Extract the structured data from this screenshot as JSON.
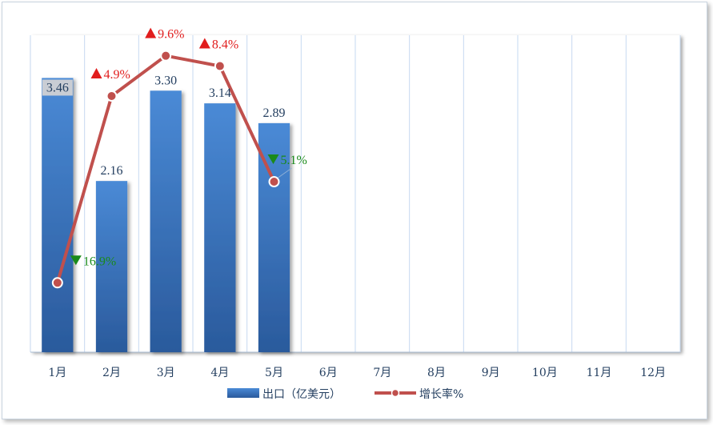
{
  "chart_data": {
    "type": "bar",
    "categories": [
      "1月",
      "2月",
      "3月",
      "4月",
      "5月",
      "6月",
      "7月",
      "8月",
      "9月",
      "10月",
      "11月",
      "12月"
    ],
    "series": [
      {
        "name": "出口（亿美元）",
        "type": "bar",
        "values": [
          3.46,
          2.16,
          3.3,
          3.14,
          2.89,
          null,
          null,
          null,
          null,
          null,
          null,
          null
        ],
        "labels": [
          "3.46",
          "2.16",
          "3.30",
          "3.14",
          "2.89"
        ]
      },
      {
        "name": "增长率%",
        "type": "line",
        "values": [
          -16.9,
          4.9,
          9.6,
          8.4,
          -5.1,
          null,
          null,
          null,
          null,
          null,
          null,
          null
        ],
        "labels": [
          "16.9%",
          "4.9%",
          "9.6%",
          "8.4%",
          "5.1%"
        ],
        "directions": [
          "down",
          "up",
          "up",
          "up",
          "down"
        ]
      }
    ],
    "title": "",
    "xlabel": "",
    "ylabel": "",
    "ylim": [
      0,
      4
    ],
    "y2lim": [
      -25,
      12
    ],
    "grid": "vertical",
    "legend": "bottom",
    "colors": {
      "bar_top": "#4a8ad6",
      "bar_bottom": "#2a5a9c",
      "line": "#c0504d",
      "up": "#e11d1d",
      "down": "#1a8a1a",
      "grid": "#c6d9f1",
      "text": "#243f60"
    }
  }
}
